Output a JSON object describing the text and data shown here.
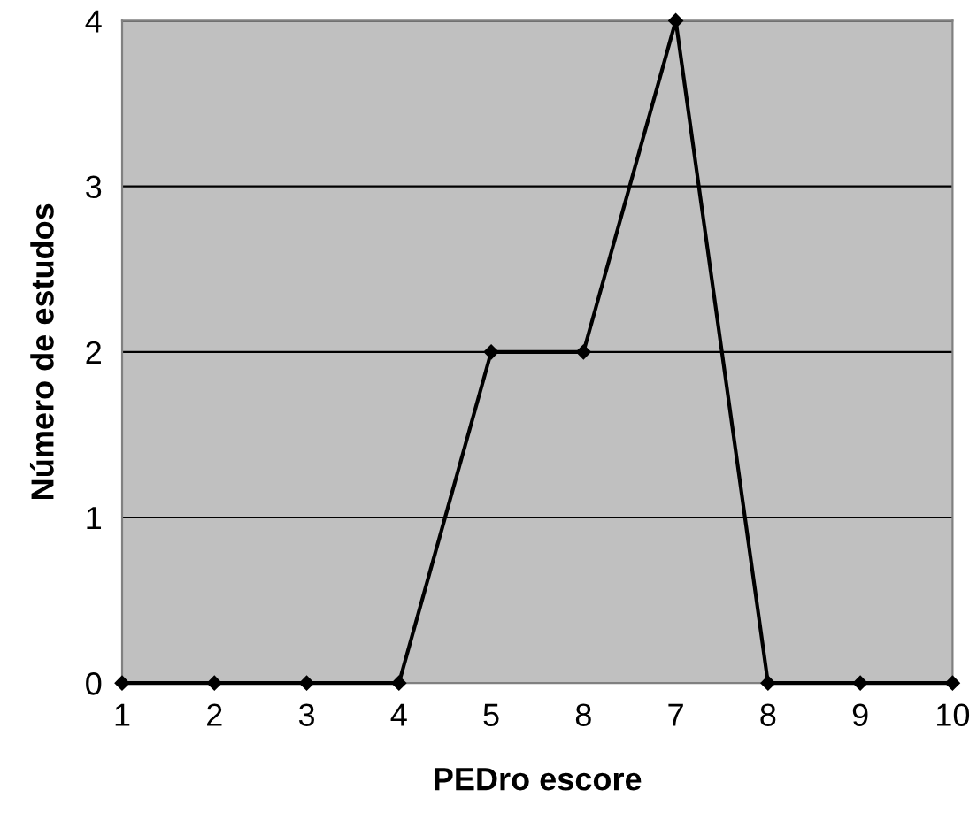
{
  "chart_data": {
    "type": "line",
    "xlabel": "PEDro escore",
    "ylabel": "Número de estudos",
    "categories": [
      "1",
      "2",
      "3",
      "4",
      "5",
      "8",
      "7",
      "8",
      "9",
      "10"
    ],
    "series": [
      {
        "color": "#000000",
        "values": [
          0,
          0,
          0,
          0,
          2,
          2,
          4,
          0,
          0,
          0
        ]
      }
    ],
    "ylim": [
      0,
      4
    ],
    "yticks": [
      0,
      1,
      2,
      3,
      4
    ],
    "grid": "y",
    "marker": "diamond",
    "line_style": "solid"
  }
}
